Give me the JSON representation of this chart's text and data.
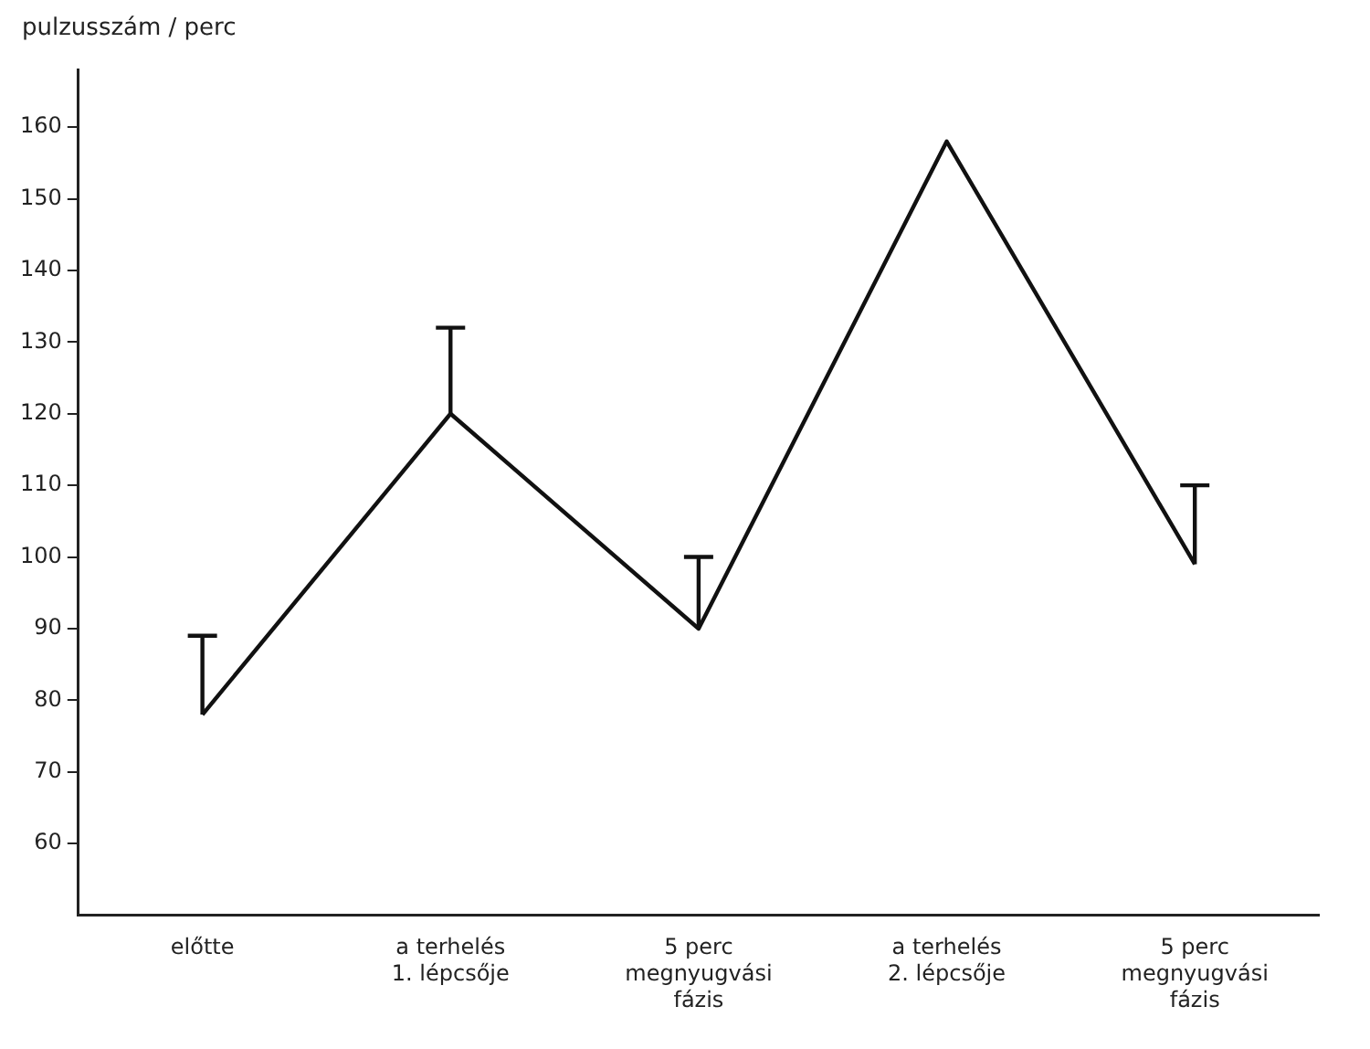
{
  "chart_data": {
    "type": "line",
    "ylabel": "pulzusszám / perc",
    "categories": [
      "előtte",
      "a terhelés 1. lépcsője",
      "5 perc megnyugvási fázis",
      "a terhelés 2. lépcsője",
      "5 perc megnyugvási fázis"
    ],
    "series": [
      {
        "color": "#111111",
        "values": [
          78,
          120,
          90,
          158,
          99
        ],
        "errors": [
          [
            78,
            89
          ],
          [
            120,
            132
          ],
          [
            90,
            100
          ],
          null,
          [
            99,
            110
          ]
        ]
      }
    ],
    "ylim": [
      50,
      168
    ],
    "yticks": [
      60,
      70,
      80,
      90,
      100,
      110,
      120,
      130,
      140,
      150,
      160
    ],
    "grid": false,
    "legend": false,
    "marker": "none",
    "line_style": "solid"
  }
}
